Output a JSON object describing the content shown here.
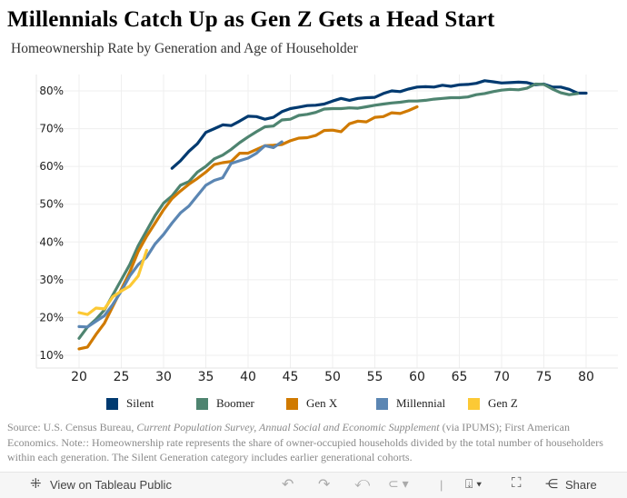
{
  "title": "Millennials Catch Up as Gen Z Gets a Head Start",
  "subtitle": "Homeownership Rate by Generation and Age of Householder",
  "note": {
    "prefix": "Source: U.S. Census Bureau, ",
    "italic": "Current Population Survey, Annual Social and Economic Supplement",
    "mid": " (via IPUMS); First American Economics. Note",
    "rest": ": Homeownership rate represents the share of owner-occupied households divided by the total number of householders within each generation. The Silent Generation category includes earlier generational cohorts."
  },
  "toolbar": {
    "view": "View on Tableau Public",
    "share": "Share"
  },
  "chart_data": {
    "type": "line",
    "title": "Millennials Catch Up as Gen Z Gets a Head Start",
    "xlabel": "",
    "ylabel": "",
    "xlim": [
      18.5,
      82.5
    ],
    "ylim": [
      8,
      84
    ],
    "xticks": [
      20,
      25,
      30,
      35,
      40,
      45,
      50,
      55,
      60,
      65,
      70,
      75,
      80
    ],
    "yticks": [
      10,
      20,
      30,
      40,
      50,
      60,
      70,
      80
    ],
    "ytick_labels": [
      "10%",
      "20%",
      "30%",
      "40%",
      "50%",
      "60%",
      "70%",
      "80%"
    ],
    "grid": true,
    "legend": "bottom",
    "series": [
      {
        "name": "Silent",
        "color": "#003a70",
        "x_start": 31,
        "values": [
          59.5,
          61.5,
          64,
          66,
          69,
          70,
          71,
          70.8,
          72,
          73.3,
          73.2,
          72.5,
          73,
          74.5,
          75.3,
          75.7,
          76.1,
          76.2,
          76.5,
          77.3,
          78,
          77.5,
          78,
          78.2,
          78.3,
          79.3,
          80,
          79.8,
          80.5,
          81,
          81.1,
          81,
          81.5,
          81.2,
          81.6,
          81.7,
          82,
          82.7,
          82.4,
          82.1,
          82.2,
          82.3,
          82.2,
          81.6,
          81.8,
          81,
          81,
          80.4,
          79.4,
          79.4
        ]
      },
      {
        "name": "Boomer",
        "color": "#4e8470",
        "x_start": 20,
        "values": [
          14.5,
          17.5,
          19.5,
          22,
          26,
          30,
          34,
          39,
          43,
          47,
          50.3,
          52.2,
          55,
          56,
          58.5,
          60,
          62,
          63,
          64.5,
          66.3,
          67.8,
          69.2,
          70.5,
          70.7,
          72.3,
          72.5,
          73.5,
          73.8,
          74.3,
          75.2,
          75.3,
          75.3,
          75.5,
          75.4,
          75.8,
          76.2,
          76.5,
          76.8,
          77,
          77.3,
          77.3,
          77.5,
          77.8,
          78,
          78.2,
          78.2,
          78.4,
          79,
          79.3,
          79.8,
          80.2,
          80.4,
          80.3,
          80.7,
          81.8,
          81.7,
          80.5,
          79.5,
          79,
          79.3
        ]
      },
      {
        "name": "Gen X",
        "color": "#d07a00",
        "x_start": 20,
        "values": [
          11.7,
          12.2,
          15.5,
          18.5,
          23,
          27.5,
          32,
          37.5,
          41.5,
          45,
          48.5,
          51.5,
          53.5,
          55.3,
          56.8,
          58.5,
          60.5,
          61,
          61.3,
          63.5,
          63.5,
          64.5,
          65.5,
          65.6,
          65.8,
          66.8,
          67.5,
          67.6,
          68.2,
          69.5,
          69.6,
          69.2,
          71.3,
          72,
          71.8,
          73,
          73.2,
          74.2,
          74,
          74.8,
          75.8
        ]
      },
      {
        "name": "Millennial",
        "color": "#5b86b3",
        "x_start": 20,
        "values": [
          17.6,
          17.5,
          19,
          20.5,
          23.5,
          27,
          31,
          34,
          36,
          39.5,
          42,
          45,
          47.7,
          49.5,
          52.3,
          55,
          56.3,
          57,
          60.8,
          61.5,
          62.2,
          63.5,
          65.5,
          65,
          66.5
        ]
      },
      {
        "name": "Gen Z",
        "color": "#fcc935",
        "x_start": 20,
        "values": [
          21.3,
          20.8,
          22.5,
          22.3,
          25.5,
          27,
          28.3,
          31,
          37.8
        ]
      }
    ]
  }
}
